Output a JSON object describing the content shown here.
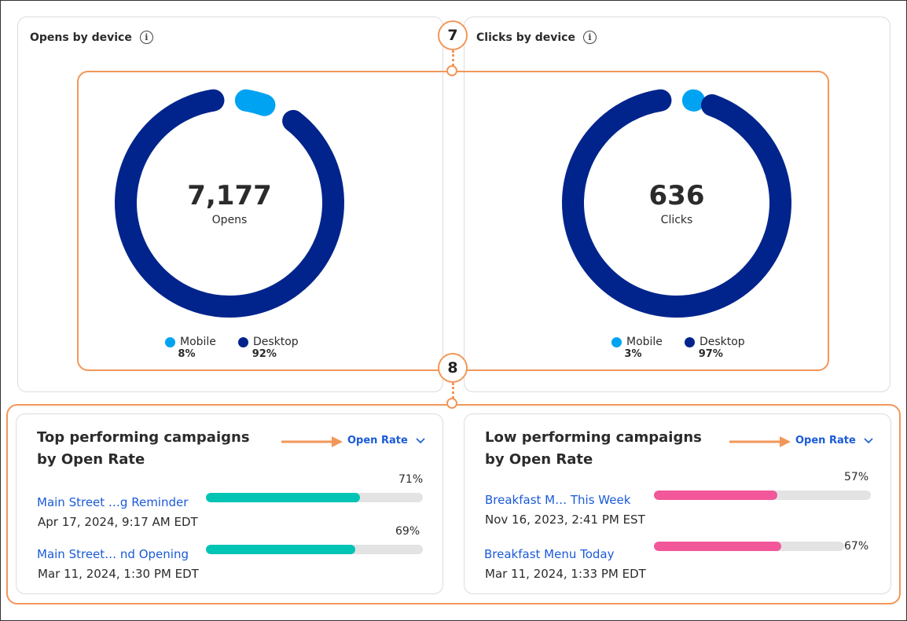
{
  "opens_card": {
    "title": "Opens by device",
    "total": "7,177",
    "total_label": "Opens",
    "legend": [
      {
        "name": "Mobile",
        "pct": "8%",
        "color": "#00a3f2"
      },
      {
        "name": "Desktop",
        "pct": "92%",
        "color": "#00248c"
      }
    ]
  },
  "clicks_card": {
    "title": "Clicks by device",
    "total": "636",
    "total_label": "Clicks",
    "legend": [
      {
        "name": "Mobile",
        "pct": "3%",
        "color": "#00a3f2"
      },
      {
        "name": "Desktop",
        "pct": "97%",
        "color": "#00248c"
      }
    ]
  },
  "callouts": {
    "first": "7",
    "second": "8"
  },
  "top_panel": {
    "title": "Top performing campaigns by Open Rate",
    "sort_label": "Open Rate",
    "bar_color": "#00c4b4",
    "campaigns": [
      {
        "name": "Main Street …g Reminder",
        "date": "Apr 17, 2024, 9:17 AM EDT",
        "pct": "71%",
        "value": 71
      },
      {
        "name": "Main Street… nd Opening",
        "date": "Mar 11, 2024, 1:30 PM EDT",
        "pct": "69%",
        "value": 69
      }
    ]
  },
  "low_panel": {
    "title": "Low performing campaigns by Open Rate",
    "sort_label": "Open Rate",
    "bar_color": "#f2579a",
    "campaigns": [
      {
        "name": "Breakfast M…  This Week",
        "date": "Nov 16, 2023, 2:41 PM EST",
        "pct": "57%",
        "value": 57
      },
      {
        "name": "Breakfast Menu Today",
        "date": "Mar 11, 2024, 1:33 PM EDT",
        "pct": "67%",
        "value": 67
      }
    ]
  },
  "colors": {
    "accent_orange": "#f2975a",
    "link_blue": "#1a5ad8",
    "mobile": "#00a3f2",
    "desktop": "#00248c"
  }
}
